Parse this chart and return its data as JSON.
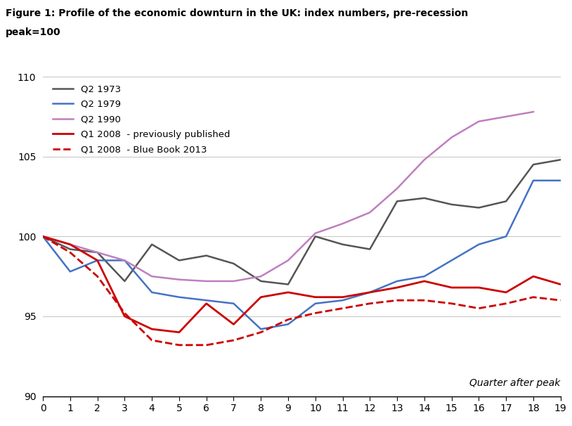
{
  "title_line1": "Figure 1: Profile of the economic downturn in the UK: index numbers, pre-recession",
  "title_line2": "peak=100",
  "xlabel": "Quarter after peak",
  "xlim": [
    0,
    19
  ],
  "ylim": [
    90,
    110
  ],
  "yticks": [
    90,
    95,
    100,
    105,
    110
  ],
  "xticks": [
    0,
    1,
    2,
    3,
    4,
    5,
    6,
    7,
    8,
    9,
    10,
    11,
    12,
    13,
    14,
    15,
    16,
    17,
    18,
    19
  ],
  "series": {
    "Q2 1973": {
      "color": "#555555",
      "linestyle": "-",
      "linewidth": 1.8,
      "values": [
        100,
        99.2,
        99.0,
        97.2,
        99.5,
        98.5,
        98.8,
        98.3,
        97.2,
        97.0,
        100.0,
        99.5,
        99.2,
        102.2,
        102.4,
        102.0,
        101.8,
        102.2,
        104.5,
        104.8
      ]
    },
    "Q2 1979": {
      "color": "#4472C4",
      "linestyle": "-",
      "linewidth": 1.8,
      "values": [
        100,
        97.8,
        98.5,
        98.5,
        96.5,
        96.2,
        96.0,
        95.8,
        94.2,
        94.5,
        95.8,
        96.0,
        96.5,
        97.2,
        97.5,
        98.5,
        99.5,
        100.0,
        103.5,
        103.5
      ]
    },
    "Q2 1990": {
      "color": "#BF7FBF",
      "linestyle": "-",
      "linewidth": 1.8,
      "values": [
        100,
        99.5,
        99.0,
        98.5,
        97.5,
        97.3,
        97.2,
        97.2,
        97.5,
        98.5,
        100.2,
        100.8,
        101.5,
        103.0,
        104.8,
        106.2,
        107.2,
        107.5,
        107.8,
        null
      ]
    },
    "Q1 2008 prev": {
      "color": "#CC0000",
      "linestyle": "-",
      "linewidth": 2.0,
      "values": [
        100,
        99.5,
        98.5,
        95.0,
        94.2,
        94.0,
        95.8,
        94.5,
        96.2,
        96.5,
        96.2,
        96.2,
        96.5,
        96.8,
        97.2,
        96.8,
        96.8,
        96.5,
        97.5,
        97.0
      ]
    },
    "Q1 2008 blue": {
      "color": "#CC0000",
      "linestyle": "--",
      "linewidth": 2.0,
      "values": [
        100,
        99.0,
        97.5,
        95.2,
        93.5,
        93.2,
        93.2,
        93.5,
        94.0,
        94.8,
        95.2,
        95.5,
        95.8,
        96.0,
        96.0,
        95.8,
        95.5,
        95.8,
        96.2,
        96.0
      ]
    }
  },
  "legend_labels": [
    "Q2 1973",
    "Q2 1979",
    "Q2 1990",
    "Q1 2008  - previously published",
    "Q1 2008  - Blue Book 2013"
  ],
  "legend_colors": [
    "#555555",
    "#4472C4",
    "#BF7FBF",
    "#CC0000",
    "#CC0000"
  ],
  "legend_linestyles": [
    "-",
    "-",
    "-",
    "-",
    "--"
  ],
  "legend_linewidths": [
    1.8,
    1.8,
    1.8,
    2.0,
    2.0
  ],
  "background_color": "#FFFFFF",
  "grid_color": "#C8C8C8"
}
